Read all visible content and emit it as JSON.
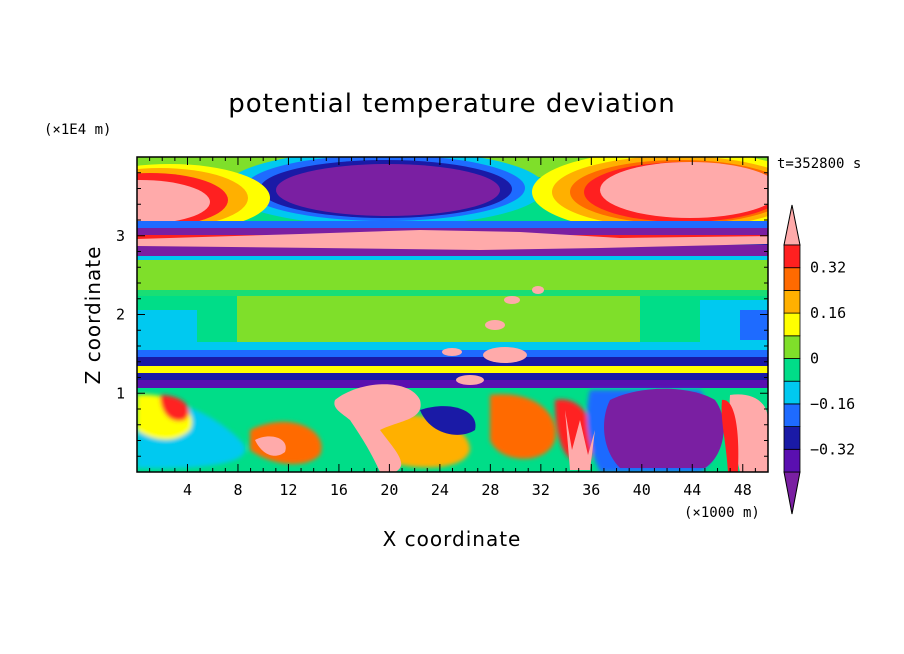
{
  "chart_data": {
    "type": "heatmap",
    "title": "potential temperature deviation",
    "xlabel": "X coordinate",
    "ylabel": "Z coordinate",
    "x_unit": "(×1000 m)",
    "y_unit": "(×1E4 m)",
    "time_label": "t=352800 s",
    "x_range": [
      0,
      50
    ],
    "y_range": [
      0,
      4
    ],
    "x_ticks": [
      "4",
      "8",
      "12",
      "16",
      "20",
      "24",
      "28",
      "32",
      "36",
      "40",
      "44",
      "48"
    ],
    "x_tick_values": [
      4,
      8,
      12,
      16,
      20,
      24,
      28,
      32,
      36,
      40,
      44,
      48
    ],
    "y_ticks": [
      "1",
      "2",
      "3"
    ],
    "y_tick_values": [
      1,
      2,
      3
    ],
    "colorbar": {
      "levels": [
        -0.4,
        -0.32,
        -0.24,
        -0.16,
        -0.08,
        0,
        0.08,
        0.16,
        0.24,
        0.32,
        0.4
      ],
      "labels": [
        "0.32",
        "0.16",
        "0",
        "−0.16",
        "−0.32"
      ],
      "label_values": [
        0.32,
        0.16,
        0,
        -0.16,
        -0.32
      ],
      "colors": [
        "#7a1fa2",
        "#5a0fb0",
        "#1a1aa6",
        "#1e6bff",
        "#00c9f0",
        "#00dd88",
        "#7fdf2a",
        "#ffff00",
        "#ffb000",
        "#ff6a00",
        "#ff2020",
        "#ffaaaa"
      ]
    }
  }
}
